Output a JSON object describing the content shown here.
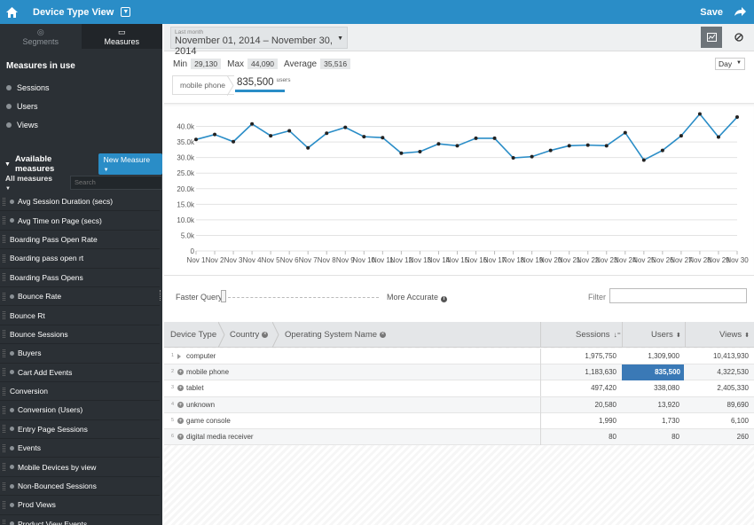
{
  "topbar": {
    "title": "Device Type View",
    "save_label": "Save"
  },
  "sidebar": {
    "tabs": [
      {
        "label": "Segments"
      },
      {
        "label": "Measures"
      }
    ],
    "measures_in_use_title": "Measures in use",
    "measures_in_use": [
      "Sessions",
      "Users",
      "Views"
    ],
    "available_title": "Available measures",
    "new_measure_label": "New Measure",
    "filter_label": "All measures",
    "search_placeholder": "Search",
    "available": [
      {
        "label": "Avg Session Duration (secs)",
        "dot": true
      },
      {
        "label": "Avg Time on Page (secs)",
        "dot": true
      },
      {
        "label": "Boarding Pass Open Rate",
        "dot": false
      },
      {
        "label": "Boarding pass open rt",
        "dot": false
      },
      {
        "label": "Boarding Pass Opens",
        "dot": false
      },
      {
        "label": "Bounce Rate",
        "dot": true
      },
      {
        "label": "Bounce Rt",
        "dot": false
      },
      {
        "label": "Bounce Sessions",
        "dot": false
      },
      {
        "label": "Buyers",
        "dot": true
      },
      {
        "label": "Cart Add Events",
        "dot": true
      },
      {
        "label": "Conversion",
        "dot": false
      },
      {
        "label": "Conversion (Users)",
        "dot": true
      },
      {
        "label": "Entry Page Sessions",
        "dot": true
      },
      {
        "label": "Events",
        "dot": true
      },
      {
        "label": "Mobile Devices by view",
        "dot": true
      },
      {
        "label": "Non-Bounced Sessions",
        "dot": true
      },
      {
        "label": "Prod Views",
        "dot": true
      },
      {
        "label": "Product View Events",
        "dot": true
      }
    ]
  },
  "datebar": {
    "range_label": "Last month",
    "range_value": "November 01, 2014 – November 30, 2014"
  },
  "stats": {
    "min_label": "Min",
    "min": "29,130",
    "max_label": "Max",
    "max": "44,090",
    "avg_label": "Average",
    "avg": "35,516",
    "interval": "Day"
  },
  "selection": {
    "crumb": "mobile phone",
    "total": "835,500",
    "unit": "users"
  },
  "chart_data": {
    "type": "line",
    "categories": [
      "Nov 1",
      "Nov 2",
      "Nov 3",
      "Nov 4",
      "Nov 5",
      "Nov 6",
      "Nov 7",
      "Nov 8",
      "Nov 9",
      "Nov 10",
      "Nov 11",
      "Nov 12",
      "Nov 13",
      "Nov 14",
      "Nov 15",
      "Nov 16",
      "Nov 17",
      "Nov 18",
      "Nov 19",
      "Nov 20",
      "Nov 21",
      "Nov 22",
      "Nov 23",
      "Nov 24",
      "Nov 25",
      "Nov 26",
      "Nov 27",
      "Nov 28",
      "Nov 29",
      "Nov 30"
    ],
    "series": [
      {
        "values": [
          35800,
          37400,
          35100,
          40800,
          37000,
          38600,
          33100,
          37800,
          39700,
          36700,
          36400,
          31400,
          31900,
          34400,
          33800,
          36200,
          36200,
          29900,
          30300,
          32300,
          33800,
          34000,
          33800,
          38000,
          29200,
          32300,
          37000,
          44000,
          36600,
          43000
        ]
      }
    ],
    "ylim": [
      0,
      45000
    ],
    "yticks": [
      "0",
      "5.0k",
      "10.0k",
      "15.0k",
      "20.0k",
      "25.0k",
      "30.0k",
      "35.0k",
      "40.0k"
    ],
    "color": "#2a8dc7",
    "grid": true
  },
  "query": {
    "faster_label": "Faster Query",
    "accurate_label": "More Accurate",
    "filter_label": "Filter"
  },
  "table": {
    "dims": [
      "Device Type",
      "Country",
      "Operating System Name"
    ],
    "cols": [
      "Sessions",
      "Users",
      "Views"
    ],
    "rows": [
      {
        "n": "1",
        "label": "computer",
        "sessions": "1,975,750",
        "users": "1,309,900",
        "views": "10,413,930"
      },
      {
        "n": "2",
        "label": "mobile phone",
        "sessions": "1,183,630",
        "users": "835,500",
        "views": "4,322,530"
      },
      {
        "n": "3",
        "label": "tablet",
        "sessions": "497,420",
        "users": "338,080",
        "views": "2,405,330"
      },
      {
        "n": "4",
        "label": "unknown",
        "sessions": "20,580",
        "users": "13,920",
        "views": "89,690"
      },
      {
        "n": "5",
        "label": "game console",
        "sessions": "1,990",
        "users": "1,730",
        "views": "6,100"
      },
      {
        "n": "6",
        "label": "digital media receiver",
        "sessions": "80",
        "users": "80",
        "views": "260"
      }
    ]
  }
}
